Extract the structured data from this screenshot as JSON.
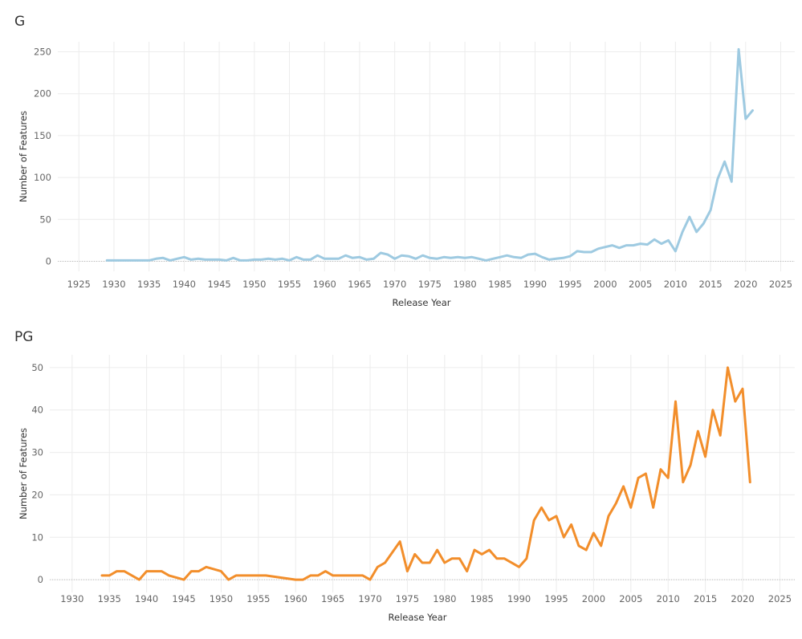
{
  "chart_data": [
    {
      "type": "line",
      "title": "G",
      "xlabel": "Release Year",
      "ylabel": "Number of Features",
      "xlim": [
        1922,
        2027
      ],
      "ylim": [
        -12,
        262
      ],
      "xticks": [
        1925,
        1930,
        1935,
        1940,
        1945,
        1950,
        1955,
        1960,
        1965,
        1970,
        1975,
        1980,
        1985,
        1990,
        1995,
        2000,
        2005,
        2010,
        2015,
        2020,
        2025
      ],
      "yticks": [
        0,
        50,
        100,
        150,
        200,
        250
      ],
      "grid": true,
      "color": "#9ecae1",
      "series": [
        {
          "x": [
            1929,
            1930,
            1931,
            1932,
            1933,
            1934,
            1935,
            1936,
            1937,
            1938,
            1939,
            1940,
            1941,
            1942,
            1943,
            1944,
            1945,
            1946,
            1947,
            1948,
            1949,
            1950,
            1951,
            1952,
            1953,
            1954,
            1955,
            1956,
            1957,
            1958,
            1959,
            1960,
            1961,
            1962,
            1963,
            1964,
            1965,
            1966,
            1967,
            1968,
            1969,
            1970,
            1971,
            1972,
            1973,
            1974,
            1975,
            1976,
            1977,
            1978,
            1979,
            1980,
            1981,
            1982,
            1983,
            1984,
            1985,
            1986,
            1987,
            1988,
            1989,
            1990,
            1991,
            1992,
            1993,
            1994,
            1995,
            1996,
            1997,
            1998,
            1999,
            2000,
            2001,
            2002,
            2003,
            2004,
            2005,
            2006,
            2007,
            2008,
            2009,
            2010,
            2011,
            2012,
            2013,
            2014,
            2015,
            2016,
            2017,
            2018,
            2019,
            2020,
            2021
          ],
          "values": [
            1,
            1,
            1,
            1,
            1,
            1,
            1,
            3,
            4,
            1,
            3,
            5,
            2,
            3,
            2,
            2,
            2,
            1,
            4,
            1,
            1,
            2,
            2,
            3,
            2,
            3,
            1,
            5,
            2,
            2,
            7,
            3,
            3,
            3,
            7,
            4,
            5,
            2,
            3,
            10,
            8,
            3,
            7,
            6,
            3,
            7,
            4,
            3,
            5,
            4,
            5,
            4,
            5,
            3,
            1,
            3,
            5,
            7,
            5,
            4,
            8,
            9,
            5,
            2,
            3,
            4,
            6,
            12,
            11,
            11,
            15,
            17,
            19,
            16,
            19,
            19,
            21,
            20,
            26,
            21,
            25,
            12,
            35,
            53,
            35,
            45,
            61,
            98,
            119,
            95,
            253,
            170,
            180
          ]
        }
      ]
    },
    {
      "type": "line",
      "title": "PG",
      "xlabel": "Release Year",
      "ylabel": "Number of Features",
      "xlim": [
        1927,
        2027
      ],
      "ylim": [
        -3,
        53
      ],
      "xticks": [
        1930,
        1935,
        1940,
        1945,
        1950,
        1955,
        1960,
        1965,
        1970,
        1975,
        1980,
        1985,
        1990,
        1995,
        2000,
        2005,
        2010,
        2015,
        2020,
        2025
      ],
      "yticks": [
        0,
        10,
        20,
        30,
        40,
        50
      ],
      "grid": true,
      "color": "#f28e2b",
      "series": [
        {
          "x": [
            1934,
            1935,
            1936,
            1937,
            1939,
            1940,
            1942,
            1943,
            1945,
            1946,
            1947,
            1948,
            1950,
            1951,
            1952,
            1956,
            1960,
            1961,
            1962,
            1963,
            1964,
            1965,
            1969,
            1970,
            1971,
            1972,
            1974,
            1975,
            1976,
            1977,
            1978,
            1979,
            1980,
            1981,
            1982,
            1983,
            1984,
            1985,
            1986,
            1987,
            1988,
            1990,
            1991,
            1992,
            1993,
            1994,
            1995,
            1996,
            1997,
            1998,
            1999,
            2000,
            2001,
            2002,
            2003,
            2004,
            2005,
            2006,
            2007,
            2008,
            2009,
            2010,
            2011,
            2012,
            2013,
            2014,
            2015,
            2016,
            2017,
            2018,
            2019,
            2020,
            2021
          ],
          "values": [
            1,
            1,
            2,
            2,
            0,
            2,
            2,
            1,
            0,
            2,
            2,
            3,
            2,
            0,
            1,
            1,
            0,
            0,
            1,
            1,
            2,
            1,
            1,
            0,
            3,
            4,
            9,
            2,
            6,
            4,
            4,
            7,
            4,
            5,
            5,
            2,
            7,
            6,
            7,
            5,
            5,
            3,
            5,
            14,
            17,
            14,
            15,
            10,
            13,
            8,
            7,
            11,
            8,
            15,
            18,
            22,
            17,
            24,
            25,
            17,
            26,
            24,
            42,
            23,
            27,
            35,
            29,
            40,
            34,
            50,
            42,
            45,
            23
          ]
        }
      ]
    }
  ]
}
